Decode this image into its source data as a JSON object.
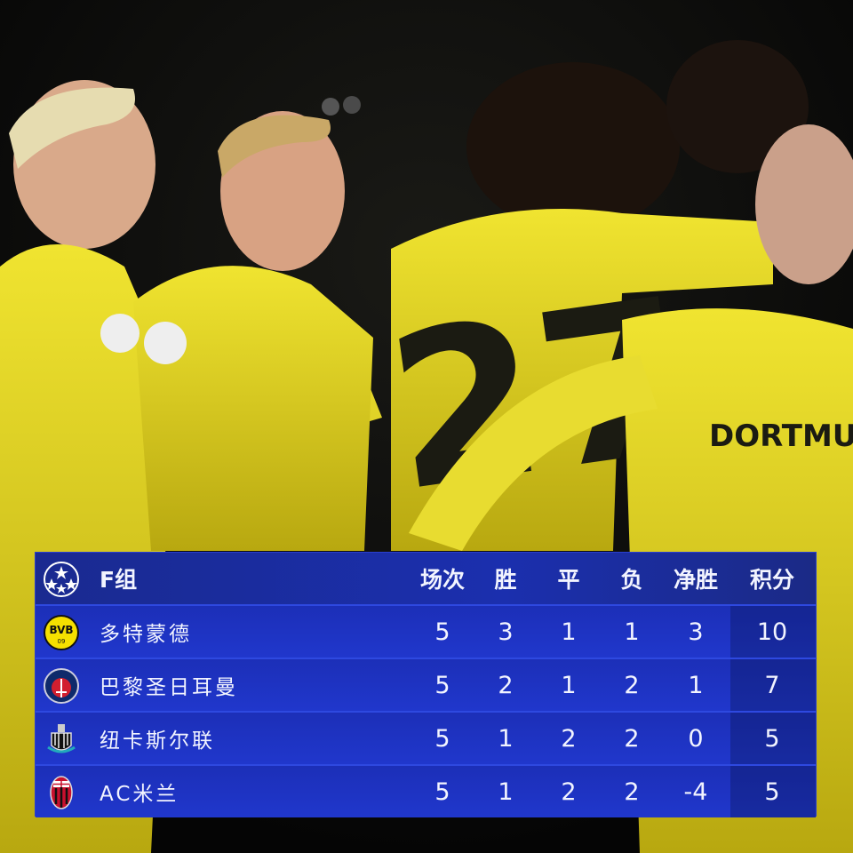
{
  "photo": {
    "jersey_text": "DORTMU",
    "jersey_number": "27",
    "colors": {
      "kit": "#e8dc1c",
      "background": "#0b0b0a"
    }
  },
  "table": {
    "title": "F组",
    "logo_icon": "champions-league-starball-icon",
    "colors": {
      "accent": "#1f35c8",
      "logo_column": "#14218a",
      "text": "#f2f4ff"
    },
    "headers": [
      "场次",
      "胜",
      "平",
      "负",
      "净胜",
      "积分"
    ],
    "rows": [
      {
        "team": "多特蒙德",
        "crest": "bvb-crest-icon",
        "values": [
          "5",
          "3",
          "1",
          "1",
          "3",
          "10"
        ]
      },
      {
        "team": "巴黎圣日耳曼",
        "crest": "psg-crest-icon",
        "values": [
          "5",
          "2",
          "1",
          "2",
          "1",
          "7"
        ]
      },
      {
        "team": "纽卡斯尔联",
        "crest": "newcastle-crest-icon",
        "values": [
          "5",
          "1",
          "2",
          "2",
          "0",
          "5"
        ]
      },
      {
        "team": "AC米兰",
        "crest": "ac-milan-crest-icon",
        "values": [
          "5",
          "1",
          "2",
          "2",
          "-4",
          "5"
        ]
      }
    ]
  }
}
